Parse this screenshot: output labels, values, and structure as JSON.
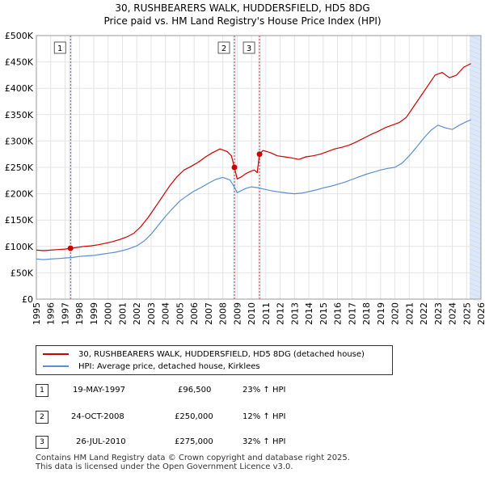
{
  "title": {
    "line1": "30, RUSHBEARERS WALK, HUDDERSFIELD, HD5 8DG",
    "line2": "Price paid vs. HM Land Registry's House Price Index (HPI)"
  },
  "colors": {
    "property": "#cc0000",
    "hpi": "#5b8fd0",
    "marker": "#cc0000",
    "band": "#dce8f7"
  },
  "chart_data": {
    "type": "line",
    "xlim": [
      1995.0,
      2026.0
    ],
    "ylim": [
      0,
      500000
    ],
    "x_ticks": [
      "1995",
      "1996",
      "1997",
      "1998",
      "1999",
      "2000",
      "2001",
      "2002",
      "2003",
      "2004",
      "2005",
      "2006",
      "2007",
      "2008",
      "2009",
      "2010",
      "2011",
      "2012",
      "2013",
      "2014",
      "2015",
      "2016",
      "2017",
      "2018",
      "2019",
      "2020",
      "2021",
      "2022",
      "2023",
      "2024",
      "2025",
      "2026"
    ],
    "y_ticks": [
      {
        "value": 0,
        "label": "£0"
      },
      {
        "value": 50000,
        "label": "£50K"
      },
      {
        "value": 100000,
        "label": "£100K"
      },
      {
        "value": 150000,
        "label": "£150K"
      },
      {
        "value": 200000,
        "label": "£200K"
      },
      {
        "value": 250000,
        "label": "£250K"
      },
      {
        "value": 300000,
        "label": "£300K"
      },
      {
        "value": 350000,
        "label": "£350K"
      },
      {
        "value": 400000,
        "label": "£400K"
      },
      {
        "value": 450000,
        "label": "£450K"
      },
      {
        "value": 500000,
        "label": "£500K"
      }
    ],
    "future_band_from": 2025.2,
    "series": [
      {
        "name": "30, RUSHBEARERS WALK, HUDDERSFIELD, HD5 8DG (detached house)",
        "color": "#cc0000",
        "x": [
          1995.0,
          1995.5,
          1996.0,
          1996.5,
          1997.0,
          1997.38,
          1997.8,
          1998.3,
          1998.8,
          1999.3,
          1999.8,
          2000.3,
          2000.8,
          2001.3,
          2001.8,
          2002.3,
          2002.8,
          2003.3,
          2003.8,
          2004.3,
          2004.8,
          2005.3,
          2005.8,
          2006.3,
          2006.8,
          2007.3,
          2007.8,
          2008.3,
          2008.6,
          2008.81,
          2009.0,
          2009.3,
          2009.6,
          2009.9,
          2010.2,
          2010.4,
          2010.56,
          2010.8,
          2011.3,
          2011.8,
          2012.3,
          2012.8,
          2013.3,
          2013.8,
          2014.3,
          2014.8,
          2015.3,
          2015.8,
          2016.3,
          2016.8,
          2017.3,
          2017.8,
          2018.3,
          2018.8,
          2019.3,
          2019.8,
          2020.3,
          2020.8,
          2021.3,
          2021.8,
          2022.3,
          2022.8,
          2023.3,
          2023.8,
          2024.3,
          2024.8,
          2025.3
        ],
        "y": [
          93000,
          92000,
          93000,
          94000,
          95000,
          96500,
          98000,
          100000,
          101000,
          103000,
          106000,
          109000,
          113000,
          118000,
          125000,
          138000,
          155000,
          175000,
          195000,
          215000,
          232000,
          245000,
          252000,
          260000,
          270000,
          278000,
          285000,
          280000,
          272000,
          250000,
          228000,
          232000,
          238000,
          242000,
          245000,
          240000,
          275000,
          282000,
          278000,
          272000,
          270000,
          268000,
          265000,
          270000,
          272000,
          275000,
          280000,
          285000,
          288000,
          292000,
          298000,
          305000,
          312000,
          318000,
          325000,
          330000,
          335000,
          345000,
          365000,
          385000,
          405000,
          425000,
          430000,
          420000,
          425000,
          440000,
          447000
        ]
      },
      {
        "name": "HPI: Average price, detached house, Kirklees",
        "color": "#5b8fd0",
        "x": [
          1995.0,
          1995.5,
          1996.0,
          1996.5,
          1997.0,
          1997.5,
          1998.0,
          1998.5,
          1999.0,
          1999.5,
          2000.0,
          2000.5,
          2001.0,
          2001.5,
          2002.0,
          2002.5,
          2003.0,
          2003.5,
          2004.0,
          2004.5,
          2005.0,
          2005.5,
          2006.0,
          2006.5,
          2007.0,
          2007.5,
          2008.0,
          2008.5,
          2008.8,
          2009.0,
          2009.3,
          2009.6,
          2010.0,
          2010.5,
          2011.0,
          2011.5,
          2012.0,
          2012.5,
          2013.0,
          2013.5,
          2014.0,
          2014.5,
          2015.0,
          2015.5,
          2016.0,
          2016.5,
          2017.0,
          2017.5,
          2018.0,
          2018.5,
          2019.0,
          2019.5,
          2020.0,
          2020.5,
          2021.0,
          2021.5,
          2022.0,
          2022.5,
          2023.0,
          2023.5,
          2024.0,
          2024.5,
          2025.0,
          2025.3
        ],
        "y": [
          76000,
          75000,
          76000,
          77000,
          78000,
          79000,
          81000,
          82000,
          83000,
          85000,
          87000,
          89000,
          92000,
          96000,
          101000,
          110000,
          123000,
          140000,
          157000,
          172000,
          186000,
          196000,
          205000,
          212000,
          220000,
          227000,
          231000,
          226000,
          213000,
          202000,
          206000,
          210000,
          213000,
          211000,
          208000,
          205000,
          203000,
          201000,
          200000,
          201000,
          204000,
          207000,
          211000,
          214000,
          218000,
          222000,
          227000,
          232000,
          237000,
          241000,
          245000,
          248000,
          250000,
          258000,
          272000,
          288000,
          305000,
          320000,
          330000,
          325000,
          322000,
          330000,
          337000,
          340000
        ]
      }
    ],
    "sales": [
      {
        "label": "1",
        "x": 1997.38,
        "y": 96500
      },
      {
        "label": "2",
        "x": 2008.81,
        "y": 250000
      },
      {
        "label": "3",
        "x": 2010.56,
        "y": 275000
      }
    ]
  },
  "legend": {
    "property_label": "30, RUSHBEARERS WALK, HUDDERSFIELD, HD5 8DG (detached house)",
    "hpi_label": "HPI: Average price, detached house, Kirklees"
  },
  "transactions": [
    {
      "num": "1",
      "date": "19-MAY-1997",
      "price": "£96,500",
      "change": "23% ↑ HPI"
    },
    {
      "num": "2",
      "date": "24-OCT-2008",
      "price": "£250,000",
      "change": "12% ↑ HPI"
    },
    {
      "num": "3",
      "date": "26-JUL-2010",
      "price": "£275,000",
      "change": "32% ↑ HPI"
    }
  ],
  "footer": {
    "line1": "Contains HM Land Registry data © Crown copyright and database right 2025.",
    "line2": "This data is licensed under the Open Government Licence v3.0."
  }
}
